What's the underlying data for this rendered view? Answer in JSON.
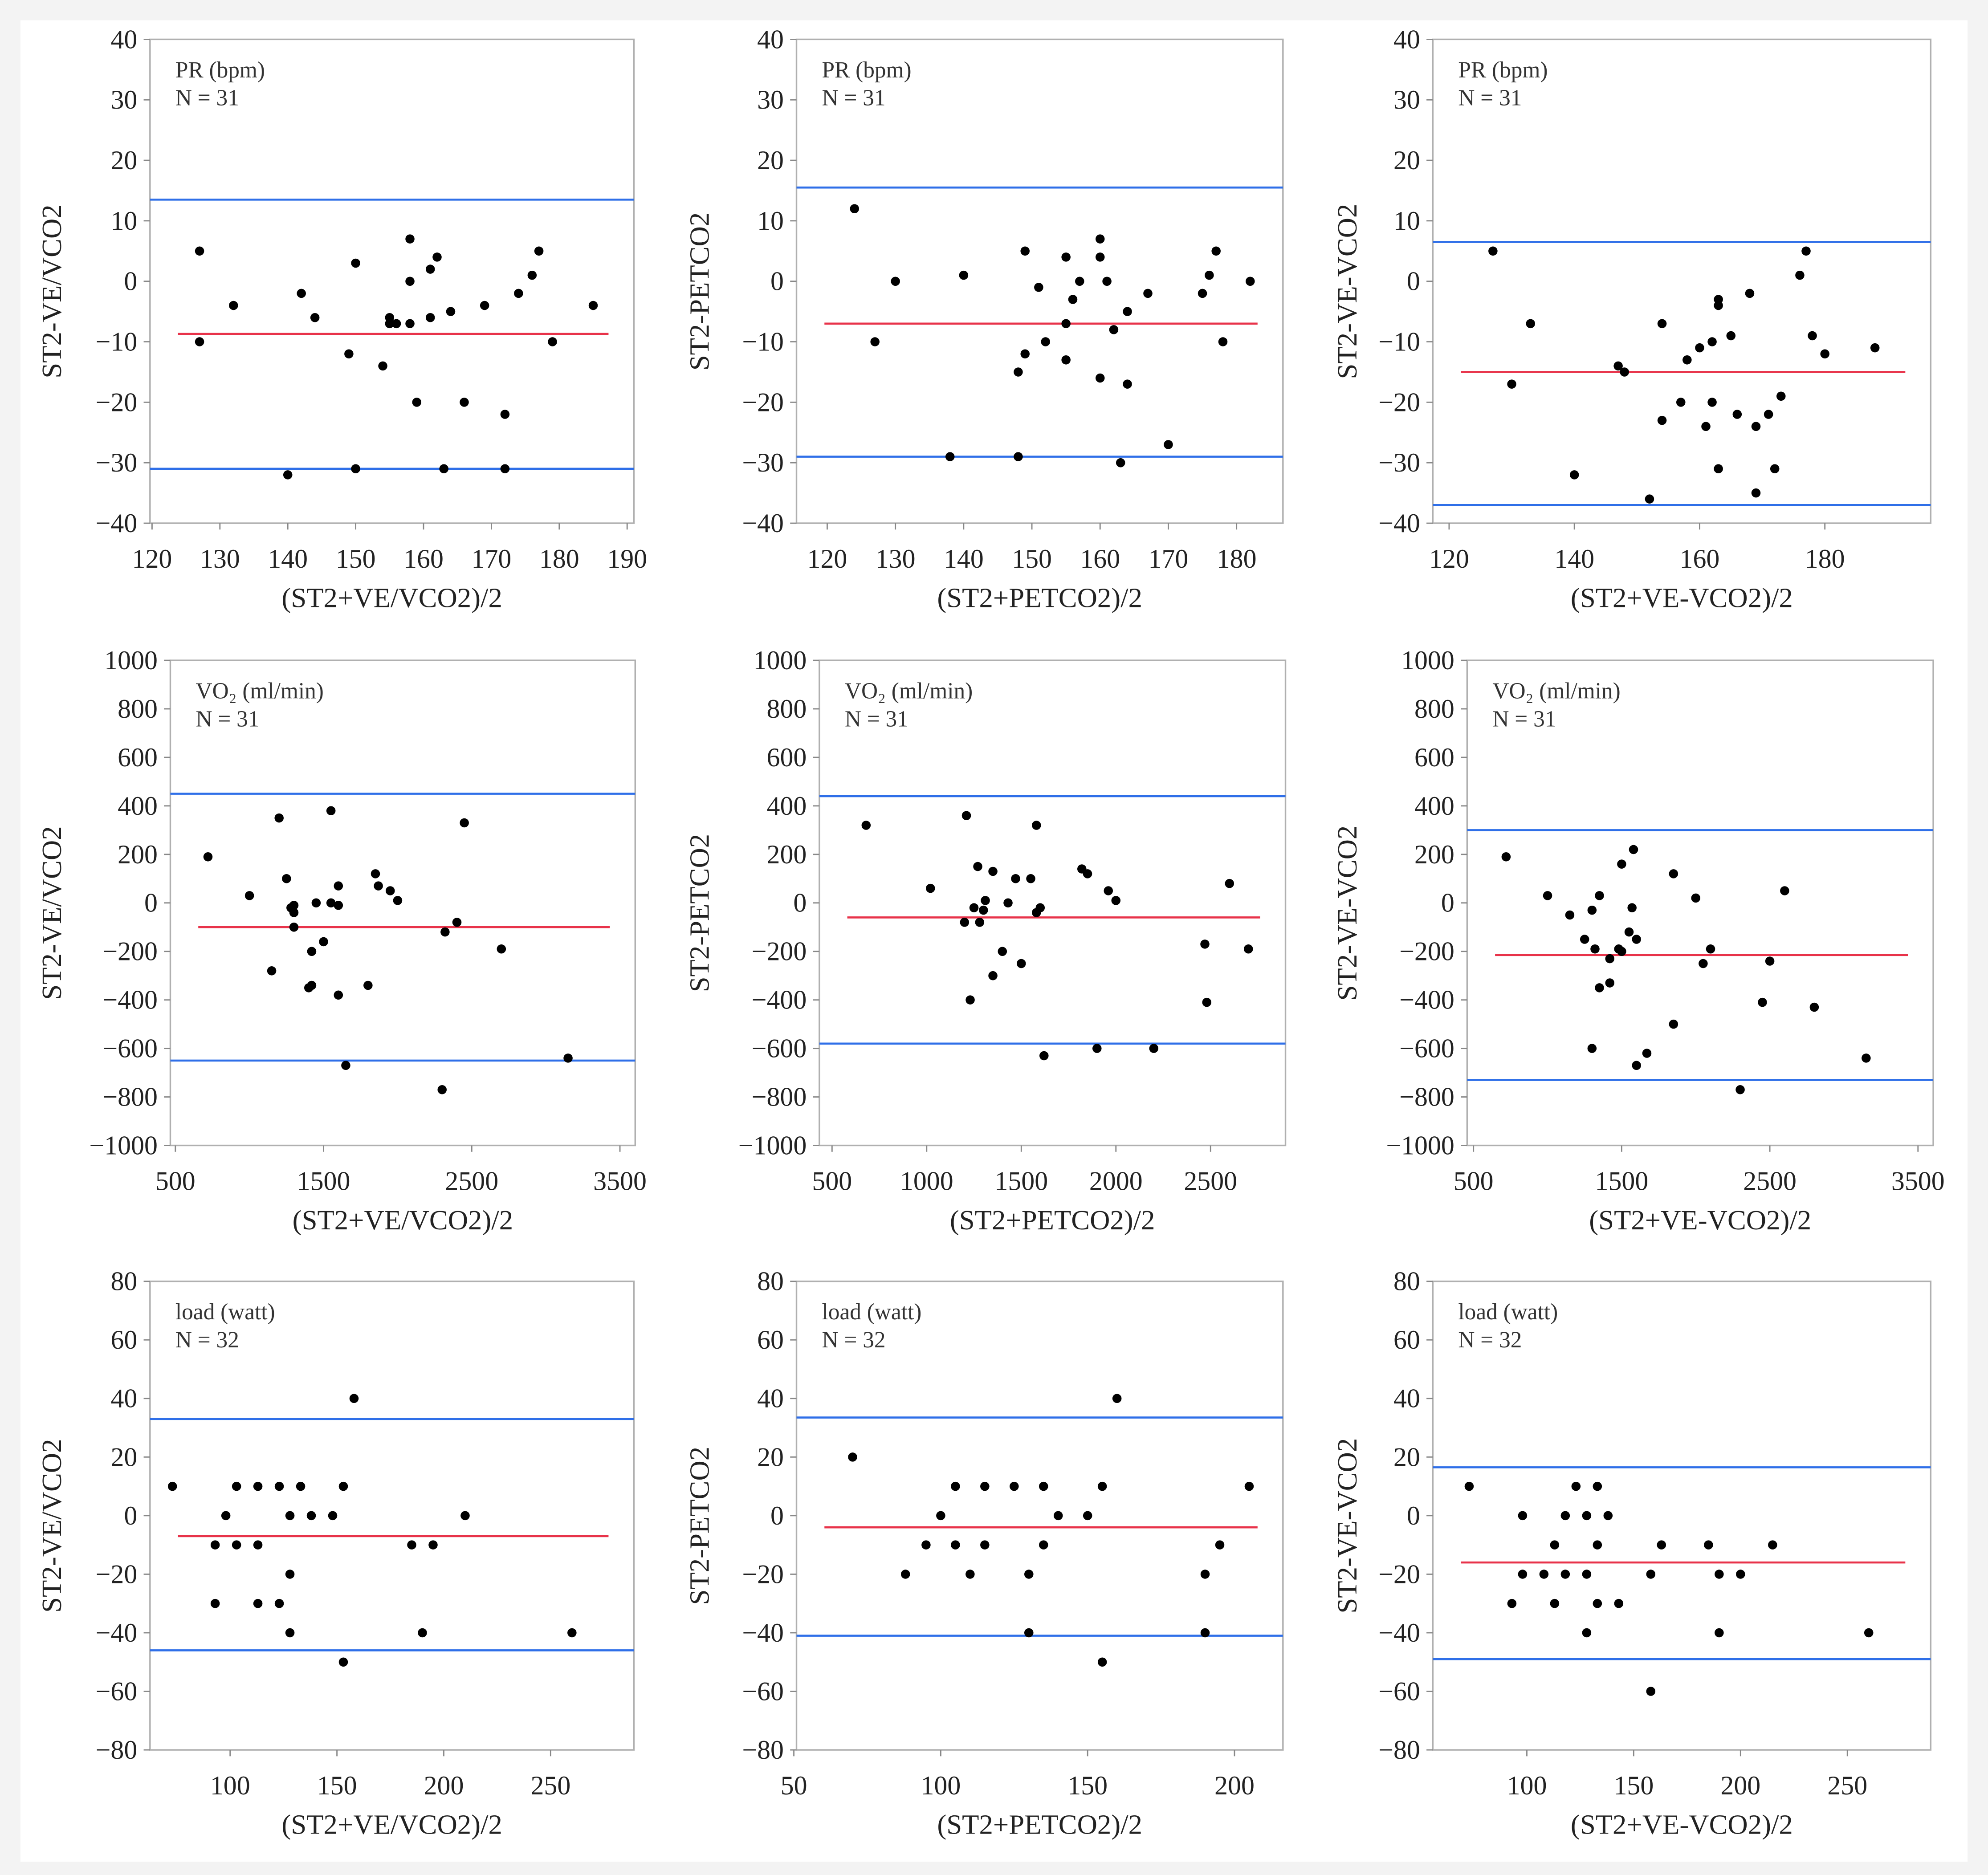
{
  "chart_data": [
    {
      "type": "scatter",
      "title": "",
      "annotation": [
        "PR (bpm)",
        "N = 31"
      ],
      "xlabel": "(ST2+VE/VCO2)/2",
      "ylabel": "ST2-VE/VCO2",
      "xlim": [
        119.7,
        191
      ],
      "ylim": [
        -40,
        40
      ],
      "xticks": [
        120,
        130,
        140,
        150,
        160,
        170,
        180,
        190
      ],
      "yticks": [
        -40,
        -30,
        -20,
        -10,
        0,
        10,
        20,
        30,
        40
      ],
      "mean": -8.7,
      "upper_loa": 13.5,
      "lower_loa": -31,
      "points": [
        [
          127,
          5
        ],
        [
          127,
          -10
        ],
        [
          132,
          -4
        ],
        [
          142,
          -2
        ],
        [
          144,
          -6
        ],
        [
          149,
          -12
        ],
        [
          150,
          3
        ],
        [
          154,
          -14
        ],
        [
          155,
          -6
        ],
        [
          155,
          -7
        ],
        [
          156,
          -7
        ],
        [
          158,
          0
        ],
        [
          158,
          7
        ],
        [
          158,
          -7
        ],
        [
          159,
          -20
        ],
        [
          161,
          -6
        ],
        [
          161,
          2
        ],
        [
          162,
          4
        ],
        [
          164,
          -5
        ],
        [
          166,
          -20
        ],
        [
          169,
          -4
        ],
        [
          172,
          -22
        ],
        [
          174,
          -2
        ],
        [
          176,
          1
        ],
        [
          177,
          5
        ],
        [
          179,
          -10
        ],
        [
          185,
          -4
        ],
        [
          140,
          -32
        ],
        [
          150,
          -31
        ],
        [
          163,
          -31
        ],
        [
          172,
          -31
        ]
      ]
    },
    {
      "type": "scatter",
      "title": "",
      "annotation": [
        "PR (bpm)",
        "N = 31"
      ],
      "xlabel": "(ST2+PETCO2)/2",
      "ylabel": "ST2-PETCO2",
      "xlim": [
        115.5,
        186.8
      ],
      "ylim": [
        -40,
        40
      ],
      "xticks": [
        120,
        130,
        140,
        150,
        160,
        170,
        180
      ],
      "yticks": [
        -40,
        -30,
        -20,
        -10,
        0,
        10,
        20,
        30,
        40
      ],
      "mean": -7,
      "upper_loa": 15.5,
      "lower_loa": -29,
      "points": [
        [
          124,
          12
        ],
        [
          127,
          -10
        ],
        [
          130,
          0
        ],
        [
          140,
          1
        ],
        [
          138,
          -29
        ],
        [
          148,
          -29
        ],
        [
          148,
          -15
        ],
        [
          149,
          5
        ],
        [
          149,
          -12
        ],
        [
          151,
          -1
        ],
        [
          152,
          -10
        ],
        [
          155,
          -7
        ],
        [
          155,
          -13
        ],
        [
          155,
          4
        ],
        [
          157,
          0
        ],
        [
          156,
          -3
        ],
        [
          160,
          -16
        ],
        [
          160,
          7
        ],
        [
          160,
          4
        ],
        [
          161,
          0
        ],
        [
          162,
          -8
        ],
        [
          164,
          -5
        ],
        [
          164,
          -17
        ],
        [
          163,
          -30
        ],
        [
          167,
          -2
        ],
        [
          170,
          -27
        ],
        [
          175,
          -2
        ],
        [
          176,
          1
        ],
        [
          177,
          5
        ],
        [
          178,
          -10
        ],
        [
          182,
          0
        ]
      ]
    },
    {
      "type": "scatter",
      "title": "",
      "annotation": [
        "PR (bpm)",
        "N = 31"
      ],
      "xlabel": "(ST2+VE-VCO2)/2",
      "ylabel": "ST2-VE-VCO2",
      "xlim": [
        117.4,
        196.9
      ],
      "ylim": [
        -40,
        40
      ],
      "xticks": [
        120,
        140,
        160,
        180
      ],
      "yticks": [
        -40,
        -30,
        -20,
        -10,
        0,
        10,
        20,
        30,
        40
      ],
      "mean": -15,
      "upper_loa": 6.5,
      "lower_loa": -37,
      "points": [
        [
          127,
          5
        ],
        [
          130,
          -17
        ],
        [
          133,
          -7
        ],
        [
          140,
          -32
        ],
        [
          147,
          -14
        ],
        [
          148,
          -15
        ],
        [
          152,
          -36
        ],
        [
          154,
          -7
        ],
        [
          154,
          -23
        ],
        [
          157,
          -20
        ],
        [
          158,
          -13
        ],
        [
          160,
          -11
        ],
        [
          161,
          -24
        ],
        [
          162,
          -20
        ],
        [
          162,
          -10
        ],
        [
          163,
          -3
        ],
        [
          163,
          -4
        ],
        [
          163,
          -31
        ],
        [
          165,
          -9
        ],
        [
          166,
          -22
        ],
        [
          168,
          -2
        ],
        [
          169,
          -35
        ],
        [
          169,
          -24
        ],
        [
          171,
          -22
        ],
        [
          172,
          -31
        ],
        [
          173,
          -19
        ],
        [
          176,
          1
        ],
        [
          177,
          5
        ],
        [
          178,
          -9
        ],
        [
          180,
          -12
        ],
        [
          188,
          -11
        ]
      ]
    },
    {
      "type": "scatter",
      "title": "",
      "annotation": [
        "VO₂ (ml/min)",
        "N = 31"
      ],
      "xlabel": "(ST2+VE/VCO2)/2",
      "ylabel": "ST2-VE/VCO2",
      "xlim": [
        466,
        3603
      ],
      "ylim": [
        -1000,
        1000
      ],
      "xticks": [
        500,
        1500,
        2500,
        3500
      ],
      "yticks": [
        -1000,
        -800,
        -600,
        -400,
        -200,
        0,
        200,
        400,
        600,
        800,
        1000
      ],
      "mean": -100,
      "upper_loa": 450,
      "lower_loa": -650,
      "points": [
        [
          720,
          190
        ],
        [
          1000,
          30
        ],
        [
          1150,
          -280
        ],
        [
          1200,
          350
        ],
        [
          1250,
          100
        ],
        [
          1280,
          -20
        ],
        [
          1300,
          -100
        ],
        [
          1300,
          -10
        ],
        [
          1400,
          -350
        ],
        [
          1420,
          -340
        ],
        [
          1420,
          -200
        ],
        [
          1450,
          0
        ],
        [
          1500,
          -160
        ],
        [
          1550,
          0
        ],
        [
          1550,
          380
        ],
        [
          1600,
          70
        ],
        [
          1600,
          -10
        ],
        [
          1600,
          -380
        ],
        [
          1650,
          -670
        ],
        [
          1800,
          -340
        ],
        [
          1850,
          120
        ],
        [
          1870,
          70
        ],
        [
          1950,
          50
        ],
        [
          2000,
          10
        ],
        [
          2300,
          -770
        ],
        [
          2320,
          -120
        ],
        [
          2400,
          -80
        ],
        [
          2450,
          330
        ],
        [
          2700,
          -190
        ],
        [
          3150,
          -640
        ],
        [
          1300,
          -40
        ]
      ]
    },
    {
      "type": "scatter",
      "title": "",
      "annotation": [
        "VO₂ (ml/min)",
        "N = 31"
      ],
      "xlabel": "(ST2+PETCO2)/2",
      "ylabel": "ST2-PETCO2",
      "xlim": [
        433,
        2896
      ],
      "ylim": [
        -1000,
        1000
      ],
      "xticks": [
        500,
        1000,
        1500,
        2000,
        2500
      ],
      "yticks": [
        -1000,
        -800,
        -600,
        -400,
        -200,
        0,
        200,
        400,
        600,
        800,
        1000
      ],
      "mean": -60,
      "upper_loa": 440,
      "lower_loa": -580,
      "points": [
        [
          680,
          320
        ],
        [
          1020,
          60
        ],
        [
          1200,
          -80
        ],
        [
          1210,
          360
        ],
        [
          1230,
          -400
        ],
        [
          1250,
          -20
        ],
        [
          1270,
          150
        ],
        [
          1300,
          -30
        ],
        [
          1310,
          10
        ],
        [
          1350,
          130
        ],
        [
          1350,
          -300
        ],
        [
          1400,
          -200
        ],
        [
          1430,
          0
        ],
        [
          1470,
          100
        ],
        [
          1500,
          -250
        ],
        [
          1550,
          100
        ],
        [
          1580,
          320
        ],
        [
          1580,
          -40
        ],
        [
          1600,
          -20
        ],
        [
          1620,
          -630
        ],
        [
          1820,
          140
        ],
        [
          1850,
          120
        ],
        [
          1900,
          -600
        ],
        [
          1960,
          50
        ],
        [
          2000,
          10
        ],
        [
          2200,
          -600
        ],
        [
          2470,
          -170
        ],
        [
          2480,
          -410
        ],
        [
          2600,
          80
        ],
        [
          2700,
          -190
        ],
        [
          1280,
          -80
        ]
      ]
    },
    {
      "type": "scatter",
      "title": "",
      "annotation": [
        "VO₂ (ml/min)",
        "N = 31"
      ],
      "xlabel": "(ST2+VE-VCO2)/2",
      "ylabel": "ST2-VE-VCO2",
      "xlim": [
        457,
        3603
      ],
      "ylim": [
        -1000,
        1000
      ],
      "xticks": [
        500,
        1500,
        2500,
        3500
      ],
      "yticks": [
        -1000,
        -800,
        -600,
        -400,
        -200,
        0,
        200,
        400,
        600,
        800,
        1000
      ],
      "mean": -215,
      "upper_loa": 300,
      "lower_loa": -730,
      "points": [
        [
          720,
          190
        ],
        [
          1000,
          30
        ],
        [
          1150,
          -50
        ],
        [
          1250,
          -150
        ],
        [
          1300,
          -30
        ],
        [
          1300,
          -600
        ],
        [
          1320,
          -190
        ],
        [
          1350,
          30
        ],
        [
          1350,
          -350
        ],
        [
          1420,
          -330
        ],
        [
          1420,
          -230
        ],
        [
          1480,
          -190
        ],
        [
          1500,
          -200
        ],
        [
          1500,
          160
        ],
        [
          1550,
          -120
        ],
        [
          1570,
          -20
        ],
        [
          1580,
          220
        ],
        [
          1600,
          -150
        ],
        [
          1600,
          -670
        ],
        [
          1670,
          -620
        ],
        [
          1850,
          120
        ],
        [
          1850,
          -500
        ],
        [
          2000,
          20
        ],
        [
          2050,
          -250
        ],
        [
          2100,
          -190
        ],
        [
          2300,
          -770
        ],
        [
          2450,
          -410
        ],
        [
          2500,
          -240
        ],
        [
          2600,
          50
        ],
        [
          2800,
          -430
        ],
        [
          3150,
          -640
        ]
      ]
    },
    {
      "type": "scatter",
      "title": "",
      "annotation": [
        "load (watt)",
        "N = 32"
      ],
      "xlabel": "(ST2+VE/VCO2)/2",
      "ylabel": "ST2-VE/VCO2",
      "xlim": [
        62.5,
        289
      ],
      "ylim": [
        -80,
        80
      ],
      "xticks": [
        100,
        150,
        200,
        250
      ],
      "yticks": [
        -80,
        -60,
        -40,
        -20,
        0,
        20,
        40,
        60,
        80
      ],
      "mean": -7,
      "upper_loa": 33,
      "lower_loa": -46,
      "points": [
        [
          73,
          10
        ],
        [
          93,
          -10
        ],
        [
          93,
          -30
        ],
        [
          98,
          0
        ],
        [
          103,
          10
        ],
        [
          103,
          -10
        ],
        [
          113,
          10
        ],
        [
          113,
          -10
        ],
        [
          113,
          -30
        ],
        [
          123,
          10
        ],
        [
          123,
          -30
        ],
        [
          128,
          0
        ],
        [
          128,
          -20
        ],
        [
          128,
          -40
        ],
        [
          133,
          10
        ],
        [
          138,
          0
        ],
        [
          148,
          0
        ],
        [
          153,
          10
        ],
        [
          153,
          -50
        ],
        [
          158,
          40
        ],
        [
          185,
          -10
        ],
        [
          190,
          -40
        ],
        [
          195,
          -10
        ],
        [
          210,
          0
        ],
        [
          260,
          -40
        ]
      ]
    },
    {
      "type": "scatter",
      "title": "",
      "annotation": [
        "load (watt)",
        "N = 32"
      ],
      "xlabel": "(ST2+PETCO2)/2",
      "ylabel": "ST2-PETCO2",
      "xlim": [
        50.9,
        216.5
      ],
      "ylim": [
        -80,
        80
      ],
      "xticks": [
        50,
        100,
        150,
        200
      ],
      "yticks": [
        -80,
        -60,
        -40,
        -20,
        0,
        20,
        40,
        60,
        80
      ],
      "mean": -4,
      "upper_loa": 33.5,
      "lower_loa": -41,
      "points": [
        [
          70,
          20
        ],
        [
          88,
          -20
        ],
        [
          95,
          -10
        ],
        [
          100,
          0
        ],
        [
          105,
          10
        ],
        [
          105,
          -10
        ],
        [
          110,
          -20
        ],
        [
          115,
          10
        ],
        [
          115,
          -10
        ],
        [
          125,
          10
        ],
        [
          130,
          -20
        ],
        [
          130,
          -40
        ],
        [
          135,
          10
        ],
        [
          135,
          -10
        ],
        [
          140,
          0
        ],
        [
          150,
          0
        ],
        [
          155,
          10
        ],
        [
          155,
          -50
        ],
        [
          160,
          40
        ],
        [
          190,
          -20
        ],
        [
          190,
          -40
        ],
        [
          195,
          -10
        ],
        [
          205,
          10
        ]
      ]
    },
    {
      "type": "scatter",
      "title": "",
      "annotation": [
        "load (watt)",
        "N = 32"
      ],
      "xlabel": "(ST2+VE-VCO2)/2",
      "ylabel": "ST2-VE-VCO2",
      "xlim": [
        56,
        289
      ],
      "ylim": [
        -80,
        80
      ],
      "xticks": [
        100,
        150,
        200,
        250
      ],
      "yticks": [
        -80,
        -60,
        -40,
        -20,
        0,
        20,
        40,
        60,
        80
      ],
      "mean": -16,
      "upper_loa": 16.5,
      "lower_loa": -49,
      "points": [
        [
          73,
          10
        ],
        [
          93,
          -30
        ],
        [
          98,
          0
        ],
        [
          98,
          -20
        ],
        [
          108,
          -20
        ],
        [
          113,
          -10
        ],
        [
          113,
          -30
        ],
        [
          118,
          0
        ],
        [
          118,
          -20
        ],
        [
          123,
          10
        ],
        [
          128,
          -20
        ],
        [
          128,
          -40
        ],
        [
          128,
          0
        ],
        [
          133,
          10
        ],
        [
          133,
          -10
        ],
        [
          133,
          -30
        ],
        [
          138,
          0
        ],
        [
          143,
          -30
        ],
        [
          158,
          -20
        ],
        [
          158,
          -60
        ],
        [
          163,
          -10
        ],
        [
          185,
          -10
        ],
        [
          190,
          -20
        ],
        [
          190,
          -40
        ],
        [
          200,
          -20
        ],
        [
          215,
          -10
        ],
        [
          260,
          -40
        ]
      ]
    }
  ],
  "colors": {
    "mean_line": "#e8334a",
    "loa_line": "#2f6fe8",
    "points": "#000000",
    "frame": "#b0b0b0"
  }
}
